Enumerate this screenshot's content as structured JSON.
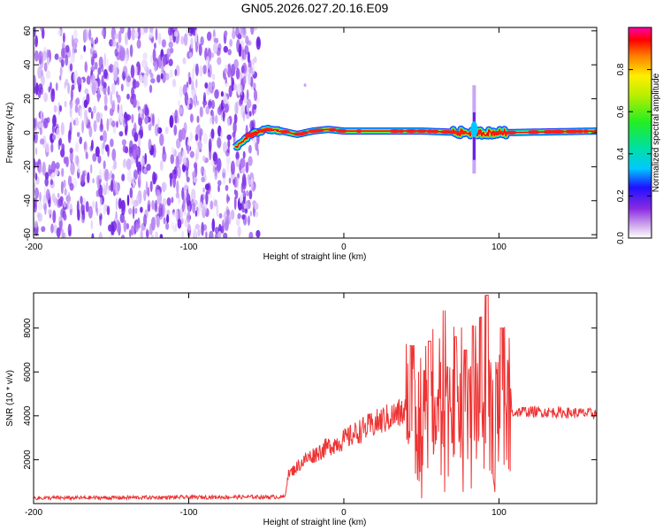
{
  "title": "GN05.2026.027.20.16.E09",
  "chart_data": [
    {
      "type": "heatmap",
      "xlabel": "Height of straight line (km)",
      "ylabel": "Frequency (Hz)",
      "xlim": [
        -200,
        163
      ],
      "ylim": [
        -62,
        62
      ],
      "x_ticks": [
        -200,
        -100,
        0,
        100
      ],
      "y_ticks": [
        -60,
        -40,
        -20,
        0,
        20,
        40,
        60
      ],
      "noise_region_x": [
        -200,
        -55
      ],
      "track": [
        {
          "x": -70,
          "y": -9
        },
        {
          "x": -60,
          "y": -1
        },
        {
          "x": -50,
          "y": 2
        },
        {
          "x": -40,
          "y": 1
        },
        {
          "x": -30,
          "y": -1
        },
        {
          "x": -20,
          "y": 1
        },
        {
          "x": -10,
          "y": 2
        },
        {
          "x": 0,
          "y": 1
        },
        {
          "x": 20,
          "y": 1
        },
        {
          "x": 50,
          "y": 1
        },
        {
          "x": 80,
          "y": 0
        },
        {
          "x": 100,
          "y": 0
        },
        {
          "x": 163,
          "y": 1
        }
      ],
      "spike": {
        "x": 84,
        "y_min": -24,
        "y_max": 28
      },
      "colorbar": {
        "label": "Normalized spectral amplitude",
        "range": [
          0,
          1
        ],
        "ticks": [
          0.0,
          0.2,
          0.4,
          0.6,
          0.8
        ],
        "tick_labels": [
          "0.0",
          "0.2",
          "0.4",
          "0.6",
          "0.8"
        ]
      }
    },
    {
      "type": "line",
      "xlabel": "Height of straight line (km)",
      "ylabel": "SNR (10 * v/v)",
      "xlim": [
        -200,
        163
      ],
      "ylim": [
        0,
        9600
      ],
      "x_ticks": [
        -200,
        -100,
        0,
        100
      ],
      "y_ticks": [
        2000,
        4000,
        6000,
        8000
      ],
      "series_color": "#ee3333",
      "envelope": [
        {
          "x": -200,
          "y": 250
        },
        {
          "x": -60,
          "y": 300
        },
        {
          "x": -38,
          "y": 300
        },
        {
          "x": -36,
          "y": 1300
        },
        {
          "x": -25,
          "y": 2000
        },
        {
          "x": -10,
          "y": 2600
        },
        {
          "x": 0,
          "y": 2900
        },
        {
          "x": 10,
          "y": 3300
        },
        {
          "x": 25,
          "y": 3800
        },
        {
          "x": 40,
          "y": 4200
        },
        {
          "x": 60,
          "y": 4200
        },
        {
          "x": 80,
          "y": 4100
        },
        {
          "x": 95,
          "y": 4000
        },
        {
          "x": 105,
          "y": 4100
        },
        {
          "x": 115,
          "y": 4200
        },
        {
          "x": 163,
          "y": 4100
        }
      ],
      "peaks": [
        {
          "x": 44,
          "y": 7200
        },
        {
          "x": 55,
          "y": 7400
        },
        {
          "x": 65,
          "y": 8800
        },
        {
          "x": 72,
          "y": 7600
        },
        {
          "x": 78,
          "y": 7000
        },
        {
          "x": 84,
          "y": 8100
        },
        {
          "x": 88,
          "y": 8500
        },
        {
          "x": 92,
          "y": 9500
        },
        {
          "x": 102,
          "y": 8000
        }
      ]
    }
  ]
}
